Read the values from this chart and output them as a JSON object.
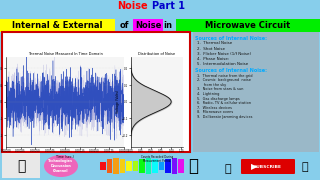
{
  "title_noise_color": "#ff0000",
  "title_part1_color": "#0000cc",
  "main_bg": "#87ceeb",
  "subtitle_bg_yellow": "#ffff00",
  "subtitle_noise_bg": "#ff00ff",
  "subtitle_microwave_bg": "#00ee00",
  "left_panel_bg": "#ffffff",
  "left_panel_border": "#cc0000",
  "right_panel_bg": "#9ab8c8",
  "internal_noise_color": "#00aaff",
  "external_noise_color": "#00aaff",
  "internal_noise_header": "Sources of Internal Noise:",
  "internal_items": [
    "1.  Thermal Noise",
    "2.  Shot Noise",
    "3.  Flicker Noise (1/f Noise)",
    "4.  Phase Noise:",
    "5.  Intermodulation Noise"
  ],
  "external_noise_header": "Sources of Internal Noise:",
  "external_items": [
    "1.  Thermal noise from the grid",
    "2.  Cosmic  background  noise",
    "      from the sky",
    "3.  Noise from stars & sun",
    "4.  Lightning",
    "5.  Gas discharge lamps",
    "6.  Radio, TV & cellular station",
    "7.  Wireless devices",
    "8.  Microwave ovens",
    "9.  Deliberate Jamming devices"
  ],
  "bottom_label": "Technologies\nDiscussion\nChannel",
  "bottom_label_bg": "#ee66bb",
  "subscribe_bg": "#dd0000",
  "subscribe_text": "SUBSCRIBE"
}
